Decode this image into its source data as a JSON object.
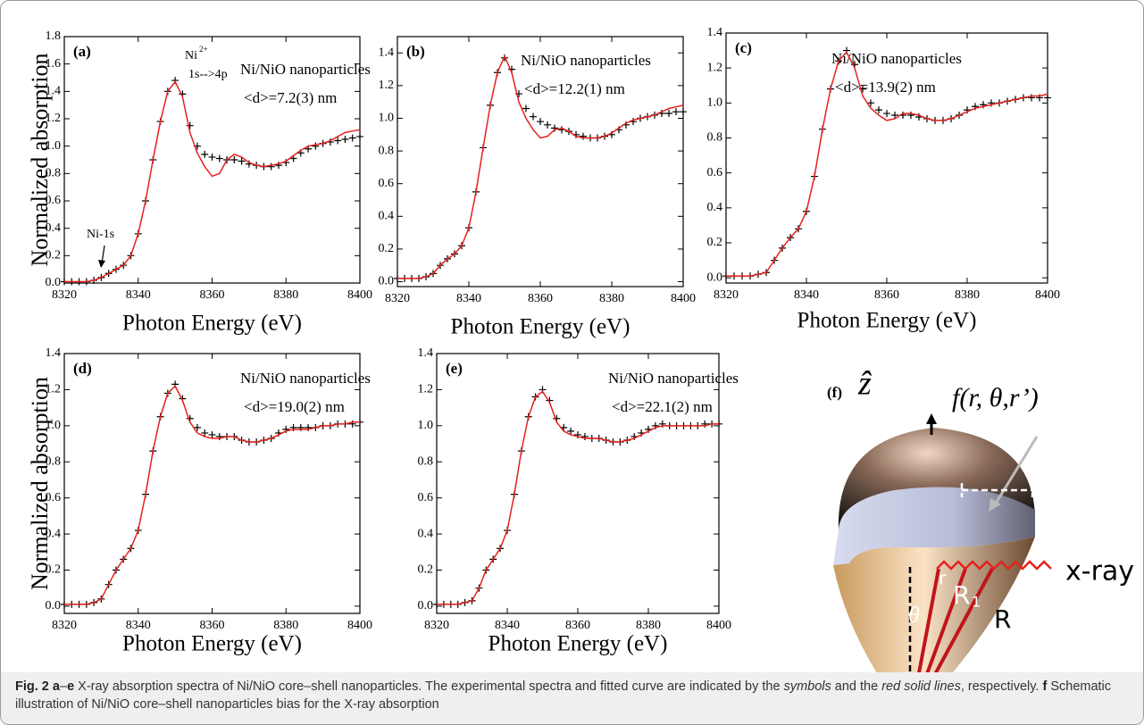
{
  "chart_data": [
    {
      "type": "line",
      "panel": "(a)",
      "annotations": [
        "Ni/NiO nanoparticles",
        "<d>=7.2(3) nm"
      ],
      "peak_label": [
        "Ni",
        "2+",
        "1s-->4p"
      ],
      "edge_label": "Ni-1s",
      "xlabel": "Photon Energy (eV)",
      "ylabel": "Normalized absorption",
      "x": [
        8320,
        8322,
        8324,
        8326,
        8328,
        8330,
        8332,
        8334,
        8336,
        8338,
        8340,
        8342,
        8344,
        8346,
        8348,
        8350,
        8352,
        8354,
        8356,
        8358,
        8360,
        8362,
        8364,
        8366,
        8368,
        8370,
        8372,
        8374,
        8376,
        8378,
        8380,
        8382,
        8384,
        8386,
        8388,
        8390,
        8392,
        8394,
        8396,
        8398,
        8400
      ],
      "series": [
        {
          "color": "#000000",
          "marker": "+",
          "values": [
            0.01,
            0.01,
            0.01,
            0.01,
            0.02,
            0.04,
            0.07,
            0.1,
            0.13,
            0.2,
            0.36,
            0.6,
            0.9,
            1.18,
            1.4,
            1.48,
            1.38,
            1.15,
            1.0,
            0.94,
            0.92,
            0.91,
            0.9,
            0.9,
            0.89,
            0.87,
            0.86,
            0.85,
            0.85,
            0.86,
            0.88,
            0.91,
            0.95,
            0.98,
            1.0,
            1.02,
            1.03,
            1.04,
            1.05,
            1.06,
            1.07
          ]
        },
        {
          "color": "#e8201c",
          "values": [
            0.01,
            0.01,
            0.01,
            0.01,
            0.02,
            0.04,
            0.07,
            0.1,
            0.13,
            0.2,
            0.36,
            0.6,
            0.9,
            1.18,
            1.4,
            1.47,
            1.36,
            1.1,
            0.95,
            0.85,
            0.78,
            0.8,
            0.9,
            0.94,
            0.92,
            0.88,
            0.86,
            0.85,
            0.86,
            0.87,
            0.89,
            0.93,
            0.97,
            1.0,
            1.01,
            1.02,
            1.04,
            1.07,
            1.1,
            1.11,
            1.12
          ]
        }
      ],
      "xlim": [
        8320,
        8400
      ],
      "xticks": [
        8320,
        8340,
        8360,
        8380,
        8400
      ],
      "ylim": [
        0,
        1.8
      ],
      "yticks": [
        {
          "value": 0,
          "label": "0.0"
        },
        0.2,
        0.4,
        0.6,
        0.8,
        {
          "value": 1,
          "label": "1.0"
        },
        1.2,
        1.4,
        1.6,
        1.8
      ]
    },
    {
      "type": "line",
      "panel": "(b)",
      "annotations": [
        "Ni/NiO nanoparticles",
        "<d>=12.2(1) nm"
      ],
      "xlabel": "Photon Energy (eV)",
      "x": [
        8320,
        8322,
        8324,
        8326,
        8328,
        8330,
        8332,
        8334,
        8336,
        8338,
        8340,
        8342,
        8344,
        8346,
        8348,
        8350,
        8352,
        8354,
        8356,
        8358,
        8360,
        8362,
        8364,
        8366,
        8368,
        8370,
        8372,
        8374,
        8376,
        8378,
        8380,
        8382,
        8384,
        8386,
        8388,
        8390,
        8392,
        8394,
        8396,
        8398,
        8400
      ],
      "series": [
        {
          "color": "#000000",
          "marker": "+",
          "values": [
            0.02,
            0.02,
            0.02,
            0.02,
            0.03,
            0.05,
            0.1,
            0.14,
            0.17,
            0.22,
            0.33,
            0.55,
            0.82,
            1.08,
            1.28,
            1.37,
            1.3,
            1.15,
            1.06,
            1.01,
            0.98,
            0.96,
            0.94,
            0.93,
            0.92,
            0.9,
            0.89,
            0.88,
            0.88,
            0.89,
            0.9,
            0.93,
            0.96,
            0.98,
            1.0,
            1.01,
            1.02,
            1.03,
            1.03,
            1.04,
            1.04
          ]
        },
        {
          "color": "#e8201c",
          "values": [
            0.02,
            0.02,
            0.02,
            0.02,
            0.03,
            0.05,
            0.1,
            0.14,
            0.17,
            0.22,
            0.33,
            0.55,
            0.82,
            1.08,
            1.28,
            1.38,
            1.28,
            1.1,
            1.0,
            0.93,
            0.88,
            0.89,
            0.93,
            0.94,
            0.92,
            0.89,
            0.88,
            0.88,
            0.88,
            0.89,
            0.91,
            0.94,
            0.97,
            0.99,
            1.0,
            1.01,
            1.02,
            1.04,
            1.06,
            1.07,
            1.08
          ]
        }
      ],
      "xlim": [
        8320,
        8400
      ],
      "xticks": [
        8320,
        8340,
        8360,
        8380,
        8400
      ],
      "ylim": [
        -0.03,
        1.5
      ],
      "yticks": [
        {
          "value": 0,
          "label": "0.0"
        },
        0.2,
        0.4,
        0.6,
        0.8,
        {
          "value": 1,
          "label": "1.0"
        },
        1.2,
        1.4
      ]
    },
    {
      "type": "line",
      "panel": "(c)",
      "annotations": [
        "Ni/NiO nanoparticles",
        "<d>=13.9(2) nm"
      ],
      "xlabel": "Photon Energy (eV)",
      "x": [
        8320,
        8322,
        8324,
        8326,
        8328,
        8330,
        8332,
        8334,
        8336,
        8338,
        8340,
        8342,
        8344,
        8346,
        8348,
        8350,
        8352,
        8354,
        8356,
        8358,
        8360,
        8362,
        8364,
        8366,
        8368,
        8370,
        8372,
        8374,
        8376,
        8378,
        8380,
        8382,
        8384,
        8386,
        8388,
        8390,
        8392,
        8394,
        8396,
        8398,
        8400
      ],
      "series": [
        {
          "color": "#000000",
          "marker": "+",
          "values": [
            0.01,
            0.01,
            0.01,
            0.01,
            0.02,
            0.03,
            0.1,
            0.17,
            0.23,
            0.28,
            0.38,
            0.58,
            0.85,
            1.08,
            1.24,
            1.3,
            1.22,
            1.08,
            1.0,
            0.96,
            0.94,
            0.93,
            0.93,
            0.93,
            0.92,
            0.91,
            0.9,
            0.9,
            0.91,
            0.93,
            0.96,
            0.98,
            0.99,
            1.0,
            1.0,
            1.01,
            1.02,
            1.03,
            1.03,
            1.03,
            1.03
          ]
        },
        {
          "color": "#e8201c",
          "values": [
            0.01,
            0.01,
            0.01,
            0.01,
            0.02,
            0.03,
            0.1,
            0.17,
            0.23,
            0.28,
            0.38,
            0.58,
            0.85,
            1.08,
            1.24,
            1.29,
            1.2,
            1.04,
            0.97,
            0.93,
            0.9,
            0.91,
            0.94,
            0.94,
            0.93,
            0.91,
            0.9,
            0.9,
            0.91,
            0.93,
            0.95,
            0.97,
            0.98,
            0.99,
            1.0,
            1.01,
            1.02,
            1.03,
            1.04,
            1.04,
            1.05
          ]
        }
      ],
      "xlim": [
        8320,
        8400
      ],
      "xticks": [
        8320,
        8340,
        8360,
        8380,
        8400
      ],
      "ylim": [
        -0.03,
        1.4
      ],
      "yticks": [
        {
          "value": 0,
          "label": "0.0"
        },
        0.2,
        0.4,
        0.6,
        0.8,
        {
          "value": 1,
          "label": "1.0"
        },
        1.2,
        1.4
      ]
    },
    {
      "type": "line",
      "panel": "(d)",
      "annotations": [
        "Ni/NiO nanoparticles",
        "<d>=19.0(2) nm"
      ],
      "xlabel": "Photon Energy (eV)",
      "ylabel": "Normalized absorption",
      "x": [
        8320,
        8322,
        8324,
        8326,
        8328,
        8330,
        8332,
        8334,
        8336,
        8338,
        8340,
        8342,
        8344,
        8346,
        8348,
        8350,
        8352,
        8354,
        8356,
        8358,
        8360,
        8362,
        8364,
        8366,
        8368,
        8370,
        8372,
        8374,
        8376,
        8378,
        8380,
        8382,
        8384,
        8386,
        8388,
        8390,
        8392,
        8394,
        8396,
        8398,
        8400
      ],
      "series": [
        {
          "color": "#000000",
          "marker": "+",
          "values": [
            0.01,
            0.01,
            0.01,
            0.01,
            0.02,
            0.04,
            0.12,
            0.2,
            0.26,
            0.32,
            0.42,
            0.62,
            0.86,
            1.05,
            1.18,
            1.23,
            1.15,
            1.04,
            0.99,
            0.96,
            0.95,
            0.94,
            0.94,
            0.94,
            0.92,
            0.91,
            0.91,
            0.92,
            0.93,
            0.96,
            0.98,
            0.99,
            0.99,
            0.99,
            0.99,
            1.0,
            1.0,
            1.01,
            1.01,
            1.01,
            1.02
          ]
        },
        {
          "color": "#e8201c",
          "values": [
            0.01,
            0.01,
            0.01,
            0.01,
            0.02,
            0.04,
            0.12,
            0.2,
            0.26,
            0.32,
            0.42,
            0.62,
            0.86,
            1.05,
            1.18,
            1.22,
            1.14,
            1.02,
            0.96,
            0.94,
            0.93,
            0.93,
            0.94,
            0.94,
            0.92,
            0.91,
            0.91,
            0.92,
            0.93,
            0.95,
            0.97,
            0.98,
            0.98,
            0.98,
            0.99,
            1.0,
            1.0,
            1.01,
            1.01,
            1.02,
            1.02
          ]
        }
      ],
      "xlim": [
        8320,
        8400
      ],
      "xticks": [
        8320,
        8340,
        8360,
        8380,
        8400
      ],
      "ylim": [
        -0.04,
        1.4
      ],
      "yticks": [
        {
          "value": 0,
          "label": "0.0"
        },
        0.2,
        0.4,
        0.6,
        0.8,
        {
          "value": 1,
          "label": "1.0"
        },
        1.2,
        1.4
      ]
    },
    {
      "type": "line",
      "panel": "(e)",
      "annotations": [
        "Ni/NiO nanoparticles",
        "<d>=22.1(2) nm"
      ],
      "xlabel": "Photon Energy (eV)",
      "x": [
        8320,
        8322,
        8324,
        8326,
        8328,
        8330,
        8332,
        8334,
        8336,
        8338,
        8340,
        8342,
        8344,
        8346,
        8348,
        8350,
        8352,
        8354,
        8356,
        8358,
        8360,
        8362,
        8364,
        8366,
        8368,
        8370,
        8372,
        8374,
        8376,
        8378,
        8380,
        8382,
        8384,
        8386,
        8388,
        8390,
        8392,
        8394,
        8396,
        8398,
        8400
      ],
      "series": [
        {
          "color": "#000000",
          "marker": "+",
          "values": [
            0.01,
            0.01,
            0.01,
            0.01,
            0.02,
            0.03,
            0.1,
            0.2,
            0.26,
            0.32,
            0.42,
            0.62,
            0.86,
            1.05,
            1.16,
            1.2,
            1.14,
            1.04,
            0.99,
            0.97,
            0.95,
            0.94,
            0.93,
            0.93,
            0.92,
            0.91,
            0.91,
            0.92,
            0.94,
            0.96,
            0.98,
            1.0,
            1.01,
            1.0,
            1.0,
            1.0,
            1.0,
            1.0,
            1.01,
            1.01,
            1.01
          ]
        },
        {
          "color": "#e8201c",
          "values": [
            0.01,
            0.01,
            0.01,
            0.01,
            0.02,
            0.03,
            0.1,
            0.2,
            0.26,
            0.32,
            0.42,
            0.62,
            0.86,
            1.05,
            1.16,
            1.19,
            1.13,
            1.02,
            0.97,
            0.95,
            0.94,
            0.93,
            0.93,
            0.93,
            0.92,
            0.91,
            0.91,
            0.92,
            0.93,
            0.95,
            0.97,
            0.99,
            1.0,
            1.0,
            1.0,
            1.0,
            1.0,
            1.0,
            1.0,
            1.01,
            1.01
          ]
        }
      ],
      "xlim": [
        8320,
        8400
      ],
      "xticks": [
        8320,
        8340,
        8360,
        8380,
        8400
      ],
      "ylim": [
        -0.04,
        1.4
      ],
      "yticks": [
        {
          "value": 0,
          "label": "0.0"
        },
        0.2,
        0.4,
        0.6,
        0.8,
        {
          "value": 1,
          "label": "1.0"
        },
        1.2,
        1.4
      ]
    }
  ],
  "schematic": {
    "panel": "(f)",
    "axis": "ẑ",
    "function": "f(r, θ,r’)",
    "inner_radius": "r",
    "shell_radius": "R",
    "shell_index": "1",
    "outer_radius": "R",
    "angle": "θ",
    "beam": "x-ray"
  },
  "caption": [
    {
      "text": "Fig. 2",
      "style": "bold"
    },
    {
      "text": " "
    },
    {
      "text": "a",
      "style": "bold"
    },
    {
      "text": "–"
    },
    {
      "text": "e",
      "style": "bold"
    },
    {
      "text": " X-ray absorption spectra of Ni/NiO core–shell nanoparticles. The experimental spectra and fitted curve are indicated by the "
    },
    {
      "text": "symbols",
      "style": "italic"
    },
    {
      "text": " and the "
    },
    {
      "text": "red solid lines",
      "style": "italic"
    },
    {
      "text": ", respectively. "
    },
    {
      "text": "f",
      "style": "bold"
    },
    {
      "text": " Schematic illustration of Ni/NiO core–shell nanoparticles bias for the X-ray absorption"
    }
  ]
}
